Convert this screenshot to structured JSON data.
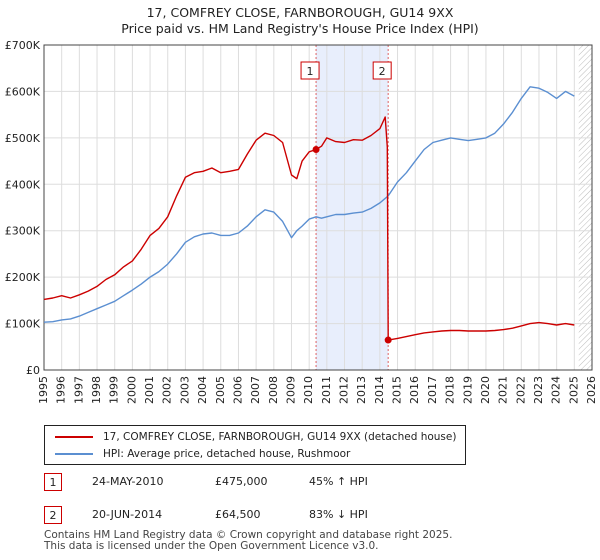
{
  "title": "17, COMFREY CLOSE, FARNBOROUGH, GU14 9XX",
  "subtitle": "Price paid vs. HM Land Registry's House Price Index (HPI)",
  "chart_data": {
    "type": "line",
    "xlim": [
      1995,
      2026
    ],
    "ylim": [
      0,
      700000
    ],
    "x_ticks": [
      1995,
      1996,
      1997,
      1998,
      1999,
      2000,
      2001,
      2002,
      2003,
      2004,
      2005,
      2006,
      2007,
      2008,
      2009,
      2010,
      2011,
      2012,
      2013,
      2014,
      2015,
      2016,
      2017,
      2018,
      2019,
      2020,
      2021,
      2022,
      2023,
      2024,
      2025,
      2026
    ],
    "y_ticks": [
      {
        "value": 0,
        "label": "£0"
      },
      {
        "value": 100000,
        "label": "£100K"
      },
      {
        "value": 200000,
        "label": "£200K"
      },
      {
        "value": 300000,
        "label": "£300K"
      },
      {
        "value": 400000,
        "label": "£400K"
      },
      {
        "value": 500000,
        "label": "£500K"
      },
      {
        "value": 600000,
        "label": "£600K"
      },
      {
        "value": 700000,
        "label": "£700K"
      }
    ],
    "grid": true,
    "shaded_period": [
      2010.39,
      2014.47
    ],
    "future_hatch_from": 2025.25,
    "series": [
      {
        "name": "17, COMFREY CLOSE, FARNBOROUGH, GU14 9XX (detached house)",
        "color": "#cc0000",
        "points": [
          [
            1995,
            152000
          ],
          [
            1995.5,
            155000
          ],
          [
            1996,
            160000
          ],
          [
            1996.5,
            155000
          ],
          [
            1997,
            162000
          ],
          [
            1997.5,
            170000
          ],
          [
            1998,
            180000
          ],
          [
            1998.5,
            195000
          ],
          [
            1999,
            205000
          ],
          [
            1999.5,
            222000
          ],
          [
            2000,
            235000
          ],
          [
            2000.5,
            260000
          ],
          [
            2001,
            290000
          ],
          [
            2001.5,
            305000
          ],
          [
            2002,
            330000
          ],
          [
            2002.5,
            375000
          ],
          [
            2003,
            415000
          ],
          [
            2003.5,
            425000
          ],
          [
            2004,
            428000
          ],
          [
            2004.5,
            435000
          ],
          [
            2005,
            425000
          ],
          [
            2005.5,
            428000
          ],
          [
            2006,
            432000
          ],
          [
            2006.5,
            465000
          ],
          [
            2007,
            495000
          ],
          [
            2007.5,
            510000
          ],
          [
            2008,
            505000
          ],
          [
            2008.5,
            490000
          ],
          [
            2009,
            420000
          ],
          [
            2009.3,
            412000
          ],
          [
            2009.6,
            450000
          ],
          [
            2010,
            470000
          ],
          [
            2010.39,
            475000
          ],
          [
            2010.7,
            482000
          ],
          [
            2011,
            500000
          ],
          [
            2011.5,
            492000
          ],
          [
            2012,
            490000
          ],
          [
            2012.5,
            496000
          ],
          [
            2013,
            495000
          ],
          [
            2013.5,
            505000
          ],
          [
            2014,
            520000
          ],
          [
            2014.3,
            545000
          ],
          [
            2014.42,
            480000
          ],
          [
            2014.47,
            64500
          ],
          [
            2015,
            68000
          ],
          [
            2015.5,
            72000
          ],
          [
            2016,
            76000
          ],
          [
            2016.5,
            80000
          ],
          [
            2017,
            82000
          ],
          [
            2017.5,
            84000
          ],
          [
            2018,
            85000
          ],
          [
            2018.5,
            85000
          ],
          [
            2019,
            84000
          ],
          [
            2019.5,
            84000
          ],
          [
            2020,
            84000
          ],
          [
            2020.5,
            85000
          ],
          [
            2021,
            87000
          ],
          [
            2021.5,
            90000
          ],
          [
            2022,
            95000
          ],
          [
            2022.5,
            100000
          ],
          [
            2023,
            102000
          ],
          [
            2023.5,
            100000
          ],
          [
            2024,
            97000
          ],
          [
            2024.5,
            100000
          ],
          [
            2025,
            97000
          ]
        ]
      },
      {
        "name": "HPI: Average price, detached house, Rushmoor",
        "color": "#5b8fd1",
        "points": [
          [
            1995,
            103000
          ],
          [
            1995.5,
            104000
          ],
          [
            1996,
            108000
          ],
          [
            1996.5,
            110000
          ],
          [
            1997,
            116000
          ],
          [
            1997.5,
            124000
          ],
          [
            1998,
            132000
          ],
          [
            1998.5,
            140000
          ],
          [
            1999,
            148000
          ],
          [
            1999.5,
            160000
          ],
          [
            2000,
            172000
          ],
          [
            2000.5,
            185000
          ],
          [
            2001,
            200000
          ],
          [
            2001.5,
            212000
          ],
          [
            2002,
            228000
          ],
          [
            2002.5,
            250000
          ],
          [
            2003,
            275000
          ],
          [
            2003.5,
            287000
          ],
          [
            2004,
            293000
          ],
          [
            2004.5,
            295000
          ],
          [
            2005,
            290000
          ],
          [
            2005.5,
            290000
          ],
          [
            2006,
            295000
          ],
          [
            2006.5,
            310000
          ],
          [
            2007,
            330000
          ],
          [
            2007.5,
            345000
          ],
          [
            2008,
            340000
          ],
          [
            2008.5,
            320000
          ],
          [
            2009,
            285000
          ],
          [
            2009.3,
            300000
          ],
          [
            2009.6,
            310000
          ],
          [
            2010,
            325000
          ],
          [
            2010.39,
            330000
          ],
          [
            2010.7,
            327000
          ],
          [
            2011,
            330000
          ],
          [
            2011.5,
            335000
          ],
          [
            2012,
            335000
          ],
          [
            2012.5,
            338000
          ],
          [
            2013,
            340000
          ],
          [
            2013.5,
            348000
          ],
          [
            2014,
            360000
          ],
          [
            2014.47,
            375000
          ],
          [
            2015,
            405000
          ],
          [
            2015.5,
            425000
          ],
          [
            2016,
            450000
          ],
          [
            2016.5,
            475000
          ],
          [
            2017,
            490000
          ],
          [
            2017.5,
            495000
          ],
          [
            2018,
            500000
          ],
          [
            2018.5,
            497000
          ],
          [
            2019,
            494000
          ],
          [
            2019.5,
            497000
          ],
          [
            2020,
            500000
          ],
          [
            2020.5,
            510000
          ],
          [
            2021,
            530000
          ],
          [
            2021.5,
            555000
          ],
          [
            2022,
            585000
          ],
          [
            2022.5,
            610000
          ],
          [
            2023,
            607000
          ],
          [
            2023.5,
            598000
          ],
          [
            2024,
            585000
          ],
          [
            2024.5,
            600000
          ],
          [
            2025,
            590000
          ]
        ]
      }
    ],
    "sales": [
      {
        "label": "1",
        "x": 2010.39,
        "price": 475000
      },
      {
        "label": "2",
        "x": 2014.47,
        "price": 64500
      }
    ]
  },
  "legend": {
    "property": "17, COMFREY CLOSE, FARNBOROUGH, GU14 9XX (detached house)",
    "hpi": "HPI: Average price, detached house, Rushmoor"
  },
  "annotations": [
    {
      "label": "1",
      "date": "24-MAY-2010",
      "price": "£475,000",
      "hpi": "45% ↑ HPI"
    },
    {
      "label": "2",
      "date": "20-JUN-2014",
      "price": "£64,500",
      "hpi": "83% ↓ HPI"
    }
  ],
  "footer": {
    "line1": "Contains HM Land Registry data © Crown copyright and database right 2025.",
    "line2": "This data is licensed under the Open Government Licence v3.0."
  },
  "colors": {
    "property": "#cc0000",
    "hpi": "#5b8fd1",
    "shade": "#e8eefc",
    "grid": "#dddddd"
  }
}
